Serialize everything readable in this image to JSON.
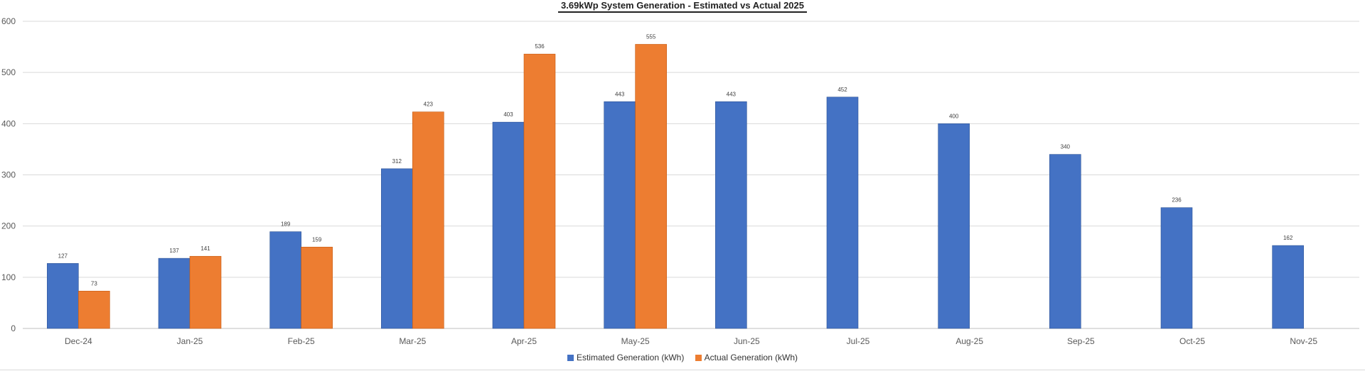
{
  "chart_data": {
    "type": "bar",
    "title": "3.69kWp System Generation - Estimated vs Actual 2025",
    "categories": [
      "Dec-24",
      "Jan-25",
      "Feb-25",
      "Mar-25",
      "Apr-25",
      "May-25",
      "Jun-25",
      "Jul-25",
      "Aug-25",
      "Sep-25",
      "Oct-25",
      "Nov-25"
    ],
    "series": [
      {
        "name": "Estimated Generation (kWh)",
        "color": "#4472c4",
        "values": [
          127,
          137,
          189,
          312,
          403,
          443,
          443,
          452,
          400,
          340,
          236,
          162
        ]
      },
      {
        "name": "Actual Generation (kWh)",
        "color": "#ed7d31",
        "values": [
          73,
          141,
          159,
          423,
          536,
          555,
          null,
          null,
          null,
          null,
          null,
          null
        ]
      }
    ],
    "ylim": [
      0,
      600
    ],
    "yticks": [
      0,
      100,
      200,
      300,
      400,
      500,
      600
    ],
    "grid": true,
    "legend_position": "bottom"
  }
}
